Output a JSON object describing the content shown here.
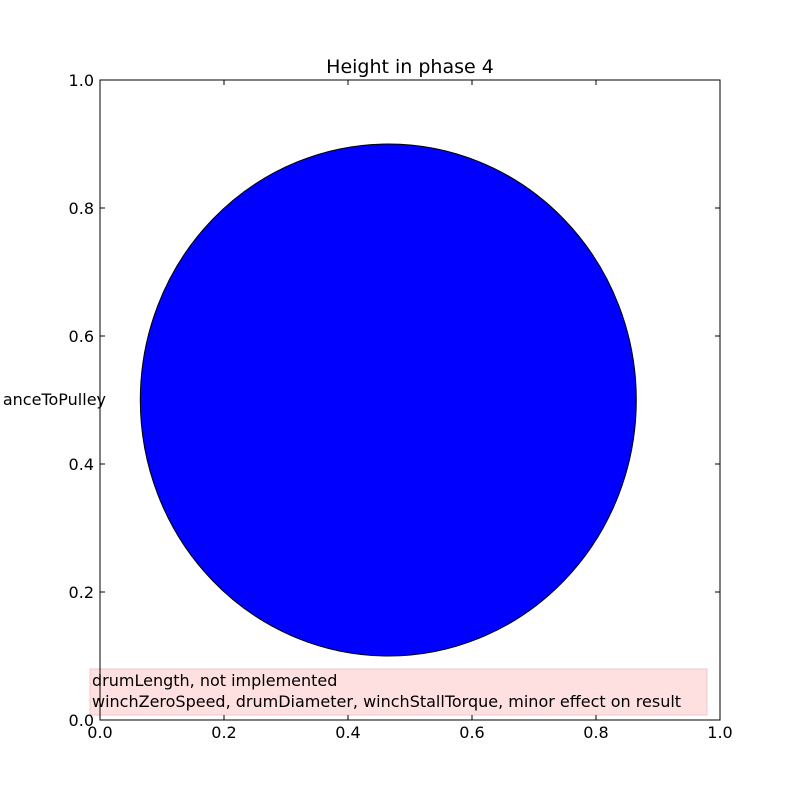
{
  "chart_data": {
    "type": "pie",
    "title": "Height in phase 4",
    "ylabel": "anceToPulley",
    "xlabel": "",
    "xlim": [
      0.0,
      1.0
    ],
    "ylim": [
      0.0,
      1.0
    ],
    "xticks": [
      "0.0",
      "0.2",
      "0.4",
      "0.6",
      "0.8",
      "1.0"
    ],
    "yticks": [
      "0.0",
      "0.2",
      "0.4",
      "0.6",
      "0.8",
      "1.0"
    ],
    "grid": false,
    "slices": [
      {
        "value": 1.0,
        "color": "#0000ff"
      }
    ],
    "pie_center": [
      0.465,
      0.5
    ],
    "pie_radius": 0.4,
    "annotation": {
      "lines": [
        "drumLength, not implemented",
        "winchZeroSpeed, drumDiameter, winchStallTorque, minor effect on result"
      ],
      "background": "#ffe0e0"
    }
  }
}
